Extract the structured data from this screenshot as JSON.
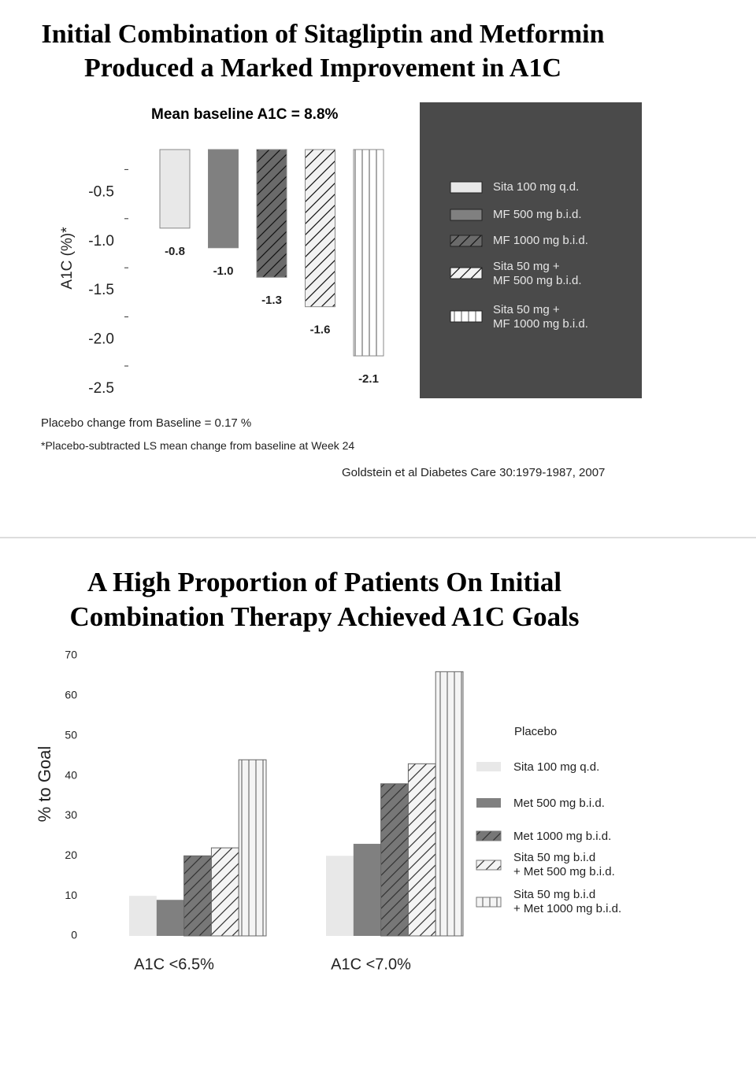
{
  "chart_data": [
    {
      "type": "bar",
      "title": "Initial Combination of Sitagliptin and Metformin\nProduced a Marked Improvement in A1C",
      "subtitle": "Mean baseline A1C = 8.8%",
      "ylabel": "A1C (%)*",
      "ylim": [
        -2.5,
        0
      ],
      "yticks": [
        -0.5,
        {
          "value": -1,
          "label": "-1.0"
        },
        -1.5,
        {
          "value": -2,
          "label": "-2.0"
        },
        -2.5
      ],
      "series": [
        {
          "name": "Sita 100 mg q.d.",
          "color": "#e8e8e8",
          "pattern": "solid",
          "values": [
            -0.8
          ],
          "value_labels": [
            "-0.8"
          ]
        },
        {
          "name": "MF 500 mg b.i.d.",
          "color": "#808080",
          "pattern": "solid",
          "values": [
            -1.0
          ],
          "value_labels": [
            "-1.0"
          ]
        },
        {
          "name": "MF 1000 mg b.i.d.",
          "color": "#6a6a6a",
          "pattern": "diagonal",
          "values": [
            -1.3
          ],
          "value_labels": [
            "-1.3"
          ]
        },
        {
          "name": "Sita 50 mg +\nMF 500 mg b.i.d.",
          "color": "#f2f2f2",
          "pattern": "diagonal",
          "values": [
            -1.6
          ],
          "value_labels": [
            "-1.6"
          ]
        },
        {
          "name": "Sita 50 mg  +\nMF 1000 mg b.i.d.",
          "color": "#ffffff",
          "pattern": "vertical",
          "values": [
            -2.1
          ],
          "value_labels": [
            "-2.1"
          ]
        }
      ],
      "notes": [
        "Placebo change from Baseline = 0.17 %",
        "*Placebo-subtracted LS mean change from baseline at Week 24"
      ],
      "source": "Goldstein et al Diabetes Care 30:1979-1987, 2007"
    },
    {
      "type": "bar",
      "title": "A High Proportion of Patients On Initial\nCombination Therapy Achieved A1C Goals",
      "ylabel": "% to Goal",
      "ylim": [
        0,
        70
      ],
      "yticks": [
        0,
        10,
        20,
        30,
        40,
        50,
        60,
        70
      ],
      "categories": [
        "A1C <6.5%",
        "A1C <7.0%"
      ],
      "legend_title": "Placebo",
      "series": [
        {
          "name": "Sita 100 mg q.d.",
          "color": "#e8e8e8",
          "pattern": "solid",
          "values": [
            10,
            20
          ]
        },
        {
          "name": "Met 500 mg b.i.d.",
          "color": "#808080",
          "pattern": "solid",
          "values": [
            9,
            23
          ]
        },
        {
          "name": "Met 1000 mg b.i.d.",
          "color": "#777777",
          "pattern": "diagonal",
          "values": [
            20,
            38
          ]
        },
        {
          "name": "Sita 50 mg b.i.d\n + Met 500 mg b.i.d.",
          "color": "#f4f4f4",
          "pattern": "diagonal",
          "values": [
            22,
            43
          ]
        },
        {
          "name": "Sita 50 mg b.i.d\n+ Met 1000 mg b.i.d.",
          "color": "#f4f4f4",
          "pattern": "vertical",
          "values": [
            44,
            66
          ]
        }
      ]
    }
  ]
}
